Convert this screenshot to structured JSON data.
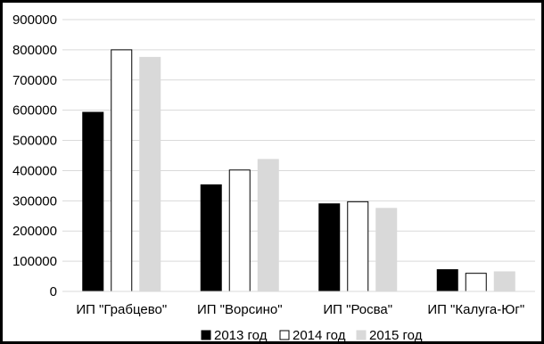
{
  "chart_data": {
    "type": "bar",
    "categories": [
      "ИП \"Грабцево\"",
      "ИП \"Ворсино\"",
      "ИП \"Росва\"",
      "ИП \"Калуга-Юг\""
    ],
    "series": [
      {
        "name": "2013 год",
        "values": [
          593000,
          353000,
          290000,
          72000
        ],
        "color": "#000000",
        "stroke": "#000000"
      },
      {
        "name": "2014 год",
        "values": [
          800000,
          402000,
          297000,
          60000
        ],
        "color": "#ffffff",
        "stroke": "#000000"
      },
      {
        "name": "2015 год",
        "values": [
          775000,
          437000,
          275000,
          65000
        ],
        "color": "#d9d9d9",
        "stroke": "#d9d9d9"
      }
    ],
    "title": "",
    "xlabel": "",
    "ylabel": "",
    "ylim": [
      0,
      900000
    ],
    "yticks": [
      "0",
      "100000",
      "200000",
      "300000",
      "400000",
      "500000",
      "600000",
      "700000",
      "800000",
      "900000"
    ],
    "grid": true,
    "legend_position": "bottom"
  }
}
